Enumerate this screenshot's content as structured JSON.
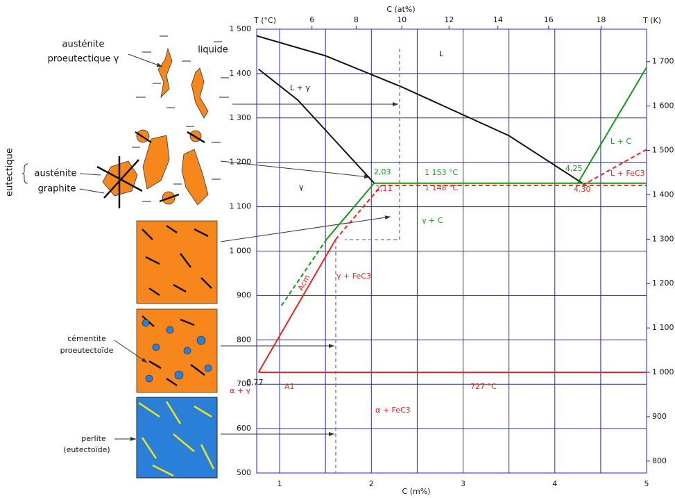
{
  "chart_data": {
    "type": "line",
    "x_label": "C (m%)",
    "x2_label": "C (at%)",
    "y_label": "T (°C)",
    "y2_label": "T (K)",
    "xlim": [
      0.75,
      5
    ],
    "xticks": [
      1,
      2,
      3,
      4,
      5
    ],
    "xgrid": [
      1,
      1.5,
      2,
      2.5,
      3,
      3.5,
      4,
      4.5,
      5
    ],
    "x2ticks": [
      6,
      8,
      10,
      12,
      14,
      16,
      18
    ],
    "ylim": [
      500,
      1500
    ],
    "yticks": [
      500,
      600,
      700,
      800,
      900,
      {
        "value": 1000,
        "label": "1 000"
      },
      {
        "value": 1100,
        "label": "1 100"
      },
      {
        "value": 1200,
        "label": "1 200"
      },
      {
        "value": 1300,
        "label": "1 300"
      },
      {
        "value": 1400,
        "label": "1 400"
      },
      {
        "value": 1500,
        "label": "1 500"
      }
    ],
    "y2lim": [
      773.15,
      1773.15
    ],
    "y2ticks": [
      800,
      900,
      {
        "value": 1000,
        "label": "1 000"
      },
      {
        "value": 1100,
        "label": "1 100"
      },
      {
        "value": 1200,
        "label": "1 200"
      },
      {
        "value": 1300,
        "label": "1 300"
      },
      {
        "value": 1400,
        "label": "1 400"
      },
      {
        "value": 1500,
        "label": "1 500"
      },
      {
        "value": 1600,
        "label": "1 600"
      },
      {
        "value": 1700,
        "label": "1 700"
      }
    ],
    "grid": true,
    "series": [
      {
        "color": "#111111",
        "dash": false,
        "x": [
          0.75,
          1.5,
          2.33,
          3.5,
          4.3
        ],
        "values": [
          1485,
          1440,
          1370,
          1260,
          1153
        ]
      },
      {
        "color": "#111111",
        "dash": false,
        "x": [
          0.77,
          1.2,
          1.6,
          2.03
        ],
        "values": [
          1410,
          1340,
          1250,
          1153
        ]
      },
      {
        "color": "#119911",
        "dash": false,
        "x": [
          1.51,
          2.03
        ],
        "values": [
          1026,
          1153
        ]
      },
      {
        "color": "#119911",
        "dash": true,
        "x": [
          1.02,
          1.51
        ],
        "values": [
          877,
          1026
        ]
      },
      {
        "color": "#119911",
        "dash": false,
        "x": [
          2.03,
          5
        ],
        "values": [
          1153,
          1153
        ]
      },
      {
        "color": "#119911",
        "dash": false,
        "x": [
          4.25,
          5
        ],
        "values": [
          1153,
          1414
        ]
      },
      {
        "color": "#ee2222",
        "dash": false,
        "x": [
          0.77,
          1.61
        ],
        "values": [
          727,
          1026
        ]
      },
      {
        "color": "#ee2222",
        "dash": true,
        "x": [
          1.61,
          2.11
        ],
        "values": [
          1026,
          1148
        ]
      },
      {
        "color": "#ee2222",
        "dash": true,
        "x": [
          2.11,
          5
        ],
        "values": [
          1148,
          1148
        ]
      },
      {
        "color": "#ee2222",
        "dash": true,
        "x": [
          4.3,
          5
        ],
        "values": [
          1148,
          1229
        ]
      },
      {
        "color": "#ee2222",
        "dash": false,
        "x": [
          0.77,
          5
        ],
        "values": [
          727,
          727
        ]
      }
    ],
    "annotations": [
      {
        "text": "L",
        "color": "#111111"
      },
      {
        "text": "L + γ",
        "color": "#111111"
      },
      {
        "text": "γ",
        "color": "#111111"
      },
      {
        "text": "2,03",
        "color": "#119911"
      },
      {
        "text": "1 153 °C",
        "color": "#119911"
      },
      {
        "text": "2,11",
        "color": "#ee2222"
      },
      {
        "text": "1 148 °C",
        "color": "#ee2222"
      },
      {
        "text": "4,25",
        "color": "#119911"
      },
      {
        "text": "4,30",
        "color": "#ee2222"
      },
      {
        "text": "L + C",
        "color": "#119911"
      },
      {
        "text": "L + FeC3",
        "color": "#ee2222"
      },
      {
        "text": "γ + C",
        "color": "#119911"
      },
      {
        "text": "γ + FeC3",
        "color": "#ee2222"
      },
      {
        "text": "Acm",
        "color": "#ee2222"
      },
      {
        "text": "0,77",
        "color": "#111111"
      },
      {
        "text": "α + γ",
        "color": "#ee2222"
      },
      {
        "text": "A1",
        "color": "#ee2222"
      },
      {
        "text": "727 °C",
        "color": "#ee2222"
      },
      {
        "text": "α + FeC3",
        "color": "#ee2222"
      }
    ]
  },
  "illustrations": {
    "labels": [
      "austénite",
      "proeutectique γ",
      "liquide",
      "eutectique",
      "austénite",
      "graphite",
      "cémentite",
      "proeutectoïde",
      "perlite",
      "(eutectoïde)"
    ]
  }
}
